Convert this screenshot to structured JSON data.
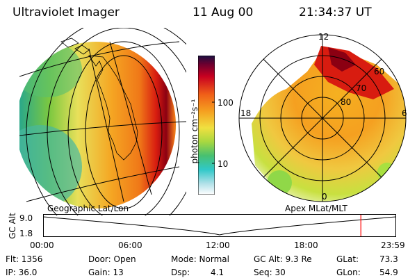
{
  "header": {
    "instrument": "Ultraviolet Imager",
    "date": "11 Aug 00",
    "time": "21:34:37 UT"
  },
  "colorbar": {
    "unit_label": "photon cm⁻²s⁻¹",
    "ticks": [
      "100",
      "10"
    ]
  },
  "left_panel": {
    "caption": "Geographic Lat/Lon"
  },
  "right_panel": {
    "caption": "Apex MLat/MLT",
    "mlt_labels": {
      "top": "12",
      "left": "18",
      "right": "6",
      "bottom": "0"
    },
    "lat_labels": [
      "60",
      "70",
      "80"
    ]
  },
  "timeline": {
    "ylabel": "GC Alt",
    "y_ticks": [
      "9.0",
      "1.8"
    ],
    "x_ticks": [
      "00:00",
      "06:00",
      "12:00",
      "18:00",
      "23:59"
    ],
    "current_marker_fraction": 0.9
  },
  "status": {
    "flt": "Flt: 1356",
    "ip": "IP: 36.0",
    "door": "Door: Open",
    "gain": "Gain: 13",
    "mode": "Mode: Normal",
    "dsp_label": "Dsp:",
    "dsp_value": "4.1",
    "gcalt": "GC Alt: 9.3 Re",
    "seq": "Seq: 30",
    "glat_label": "GLat:",
    "glat_value": "73.3",
    "glon_label": "GLon:",
    "glon_value": "54.9"
  },
  "colors": {
    "aurora_peak": "#8b0012",
    "aurora_high": "#e83a10",
    "aurora_mid": "#f7a51a",
    "aurora_low": "#c8e03a",
    "background_low": "#30b898",
    "marker": "#ff0000"
  }
}
